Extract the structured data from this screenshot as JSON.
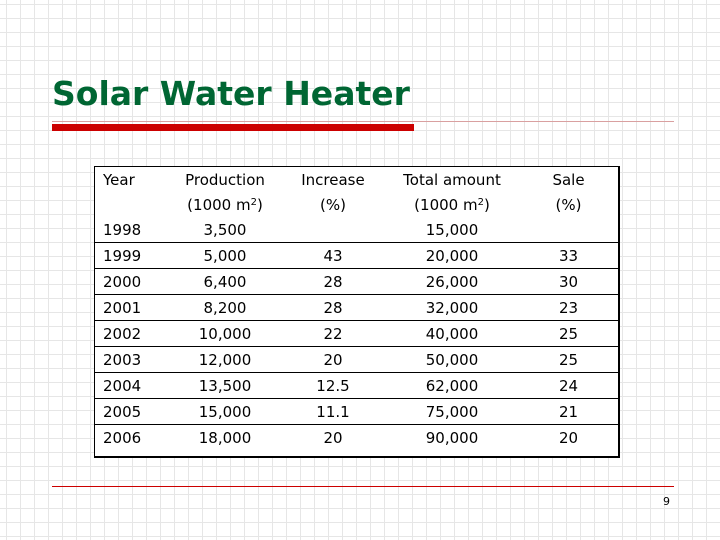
{
  "slide": {
    "title": "Solar Water Heater",
    "page_number": "9",
    "colors": {
      "title": "#006633",
      "accent": "#cc0000"
    }
  },
  "table": {
    "headers": {
      "year": "Year",
      "production": "Production",
      "production_unit_pre": "(1000 m",
      "increase": "Increase",
      "increase_unit": "(%)",
      "total": "Total amount",
      "total_unit_pre": "(1000 m",
      "sale": "Sale",
      "sale_unit": "(%)",
      "unit_sup": "2",
      "unit_close": ")"
    },
    "rows": [
      {
        "year": "1998",
        "production": "3,500",
        "increase": "",
        "total": "15,000",
        "sale": ""
      },
      {
        "year": "1999",
        "production": "5,000",
        "increase": "43",
        "total": "20,000",
        "sale": "33"
      },
      {
        "year": "2000",
        "production": "6,400",
        "increase": "28",
        "total": "26,000",
        "sale": "30"
      },
      {
        "year": "2001",
        "production": "8,200",
        "increase": "28",
        "total": "32,000",
        "sale": "23"
      },
      {
        "year": "2002",
        "production": "10,000",
        "increase": "22",
        "total": "40,000",
        "sale": "25"
      },
      {
        "year": "2003",
        "production": "12,000",
        "increase": "20",
        "total": "50,000",
        "sale": "25"
      },
      {
        "year": "2004",
        "production": "13,500",
        "increase": "12.5",
        "total": "62,000",
        "sale": "24"
      },
      {
        "year": "2005",
        "production": "15,000",
        "increase": "11.1",
        "total": "75,000",
        "sale": "21"
      },
      {
        "year": "2006",
        "production": "18,000",
        "increase": "20",
        "total": "90,000",
        "sale": "20"
      }
    ]
  }
}
